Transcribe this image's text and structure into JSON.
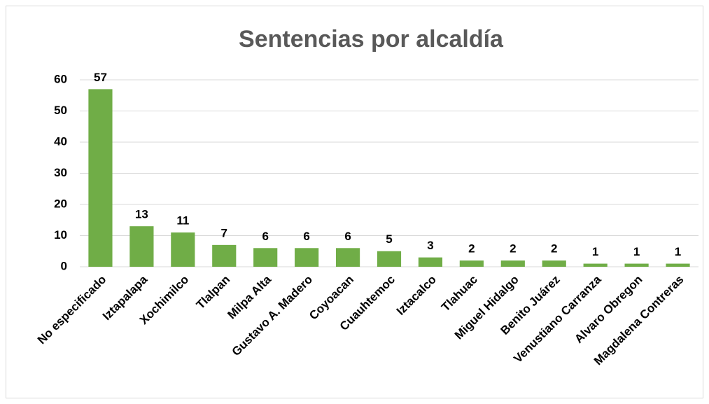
{
  "chart_data": {
    "type": "bar",
    "title": "Sentencias por alcaldía",
    "categories": [
      "No especificado",
      "Iztapalapa",
      "Xochimilco",
      "Tlalpan",
      "Milpa Alta",
      "Gustavo A. Madero",
      "Coyoacan",
      "Cuauhtemoc",
      "Iztacalco",
      "Tlahuac",
      "Miguel Hidalgo",
      "Benito Juárez",
      "Venustiano Carranza",
      "Alvaro Obregon",
      "Magdalena Contreras"
    ],
    "values": [
      57,
      13,
      11,
      7,
      6,
      6,
      6,
      5,
      3,
      2,
      2,
      2,
      1,
      1,
      1
    ],
    "color": "#70ad47",
    "ylim": [
      0,
      60
    ],
    "yticks": [
      0,
      10,
      20,
      30,
      40,
      50,
      60
    ],
    "grid": true
  }
}
